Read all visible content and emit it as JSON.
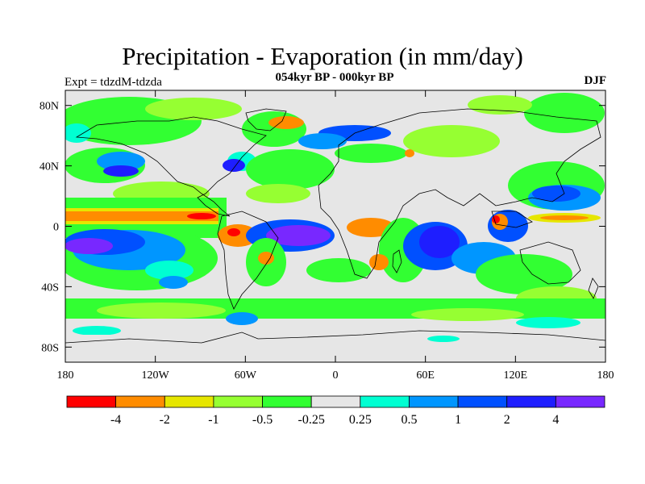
{
  "title": "Precipitation - Evaporation (in mm/day)",
  "subtitle": "054kyr BP - 000kyr BP",
  "experiment": "Expt = tdzdM-tdzda",
  "season": "DJF",
  "map": {
    "lon_range": [
      -180,
      180
    ],
    "lat_range": [
      -90,
      90
    ],
    "lat_ticks": [
      {
        "value": 80,
        "label": "80N"
      },
      {
        "value": 40,
        "label": "40N"
      },
      {
        "value": 0,
        "label": "0"
      },
      {
        "value": -40,
        "label": "40S"
      },
      {
        "value": -80,
        "label": "80S"
      }
    ],
    "lon_ticks": [
      {
        "value": -180,
        "label": "180"
      },
      {
        "value": -120,
        "label": "120W"
      },
      {
        "value": -60,
        "label": "60W"
      },
      {
        "value": 0,
        "label": "0"
      },
      {
        "value": 60,
        "label": "60E"
      },
      {
        "value": 120,
        "label": "120E"
      },
      {
        "value": 180,
        "label": "180"
      }
    ]
  },
  "legend": {
    "colors": [
      "#ff0000",
      "#ff8c00",
      "#e6e600",
      "#96ff32",
      "#32ff32",
      "#e6e6e6",
      "#00ffd2",
      "#0096ff",
      "#0050ff",
      "#1e1eff",
      "#7828ff"
    ],
    "labels": [
      "-4",
      "-2",
      "-1",
      "-0.5",
      "-0.25",
      "0.25",
      "0.5",
      "1",
      "2",
      "4"
    ]
  },
  "colors": {
    "strong_dry": "#ff0000",
    "dry": "#ff8c00",
    "moderate_dry": "#e6e600",
    "slight_dry": "#96ff32",
    "weak_dry": "#32ff32",
    "neutral": "#e6e6e6",
    "weak_wet": "#00ffd2",
    "slight_wet": "#0096ff",
    "moderate_wet": "#0050ff",
    "wet": "#1e1eff",
    "strong_wet": "#7828ff"
  }
}
